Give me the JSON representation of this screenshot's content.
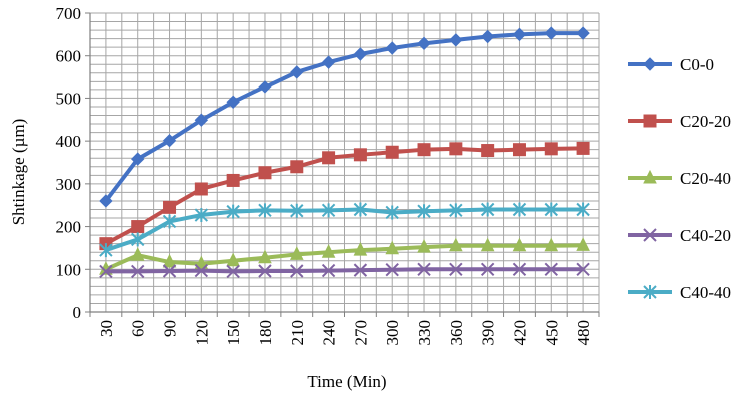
{
  "chart_data": {
    "type": "line",
    "title": "",
    "xlabel": "Time (Min)",
    "ylabel": "Shtinkage (µm)",
    "categories": [
      "30",
      "60",
      "90",
      "120",
      "150",
      "180",
      "210",
      "240",
      "270",
      "300",
      "330",
      "360",
      "390",
      "420",
      "450",
      "480"
    ],
    "ylim": [
      0,
      700
    ],
    "yticks": [
      0,
      100,
      200,
      300,
      400,
      500,
      600,
      700
    ],
    "grid": true,
    "legend_position": "right",
    "series": [
      {
        "name": "C0-0",
        "color": "#4472C4",
        "marker": "diamond",
        "values": [
          260,
          358,
          401,
          449,
          491,
          527,
          562,
          585,
          604,
          618,
          629,
          637,
          645,
          650,
          653,
          653
        ]
      },
      {
        "name": "C20-20",
        "color": "#C0504D",
        "marker": "square",
        "values": [
          160,
          200,
          245,
          288,
          308,
          326,
          340,
          361,
          368,
          374,
          380,
          382,
          378,
          380,
          382,
          383
        ]
      },
      {
        "name": "C20-40",
        "color": "#9BBB59",
        "marker": "triangle",
        "values": [
          100,
          133,
          117,
          113,
          120,
          127,
          135,
          140,
          145,
          148,
          152,
          155,
          155,
          155,
          155,
          156
        ]
      },
      {
        "name": "C40-20",
        "color": "#8064A2",
        "marker": "x",
        "values": [
          95,
          95,
          96,
          97,
          95,
          96,
          96,
          97,
          98,
          99,
          100,
          100,
          100,
          100,
          100,
          100
        ]
      },
      {
        "name": "C40-40",
        "color": "#4BACC6",
        "marker": "star",
        "values": [
          145,
          170,
          212,
          227,
          235,
          238,
          237,
          238,
          240,
          233,
          236,
          238,
          240,
          240,
          240,
          240
        ]
      }
    ]
  }
}
